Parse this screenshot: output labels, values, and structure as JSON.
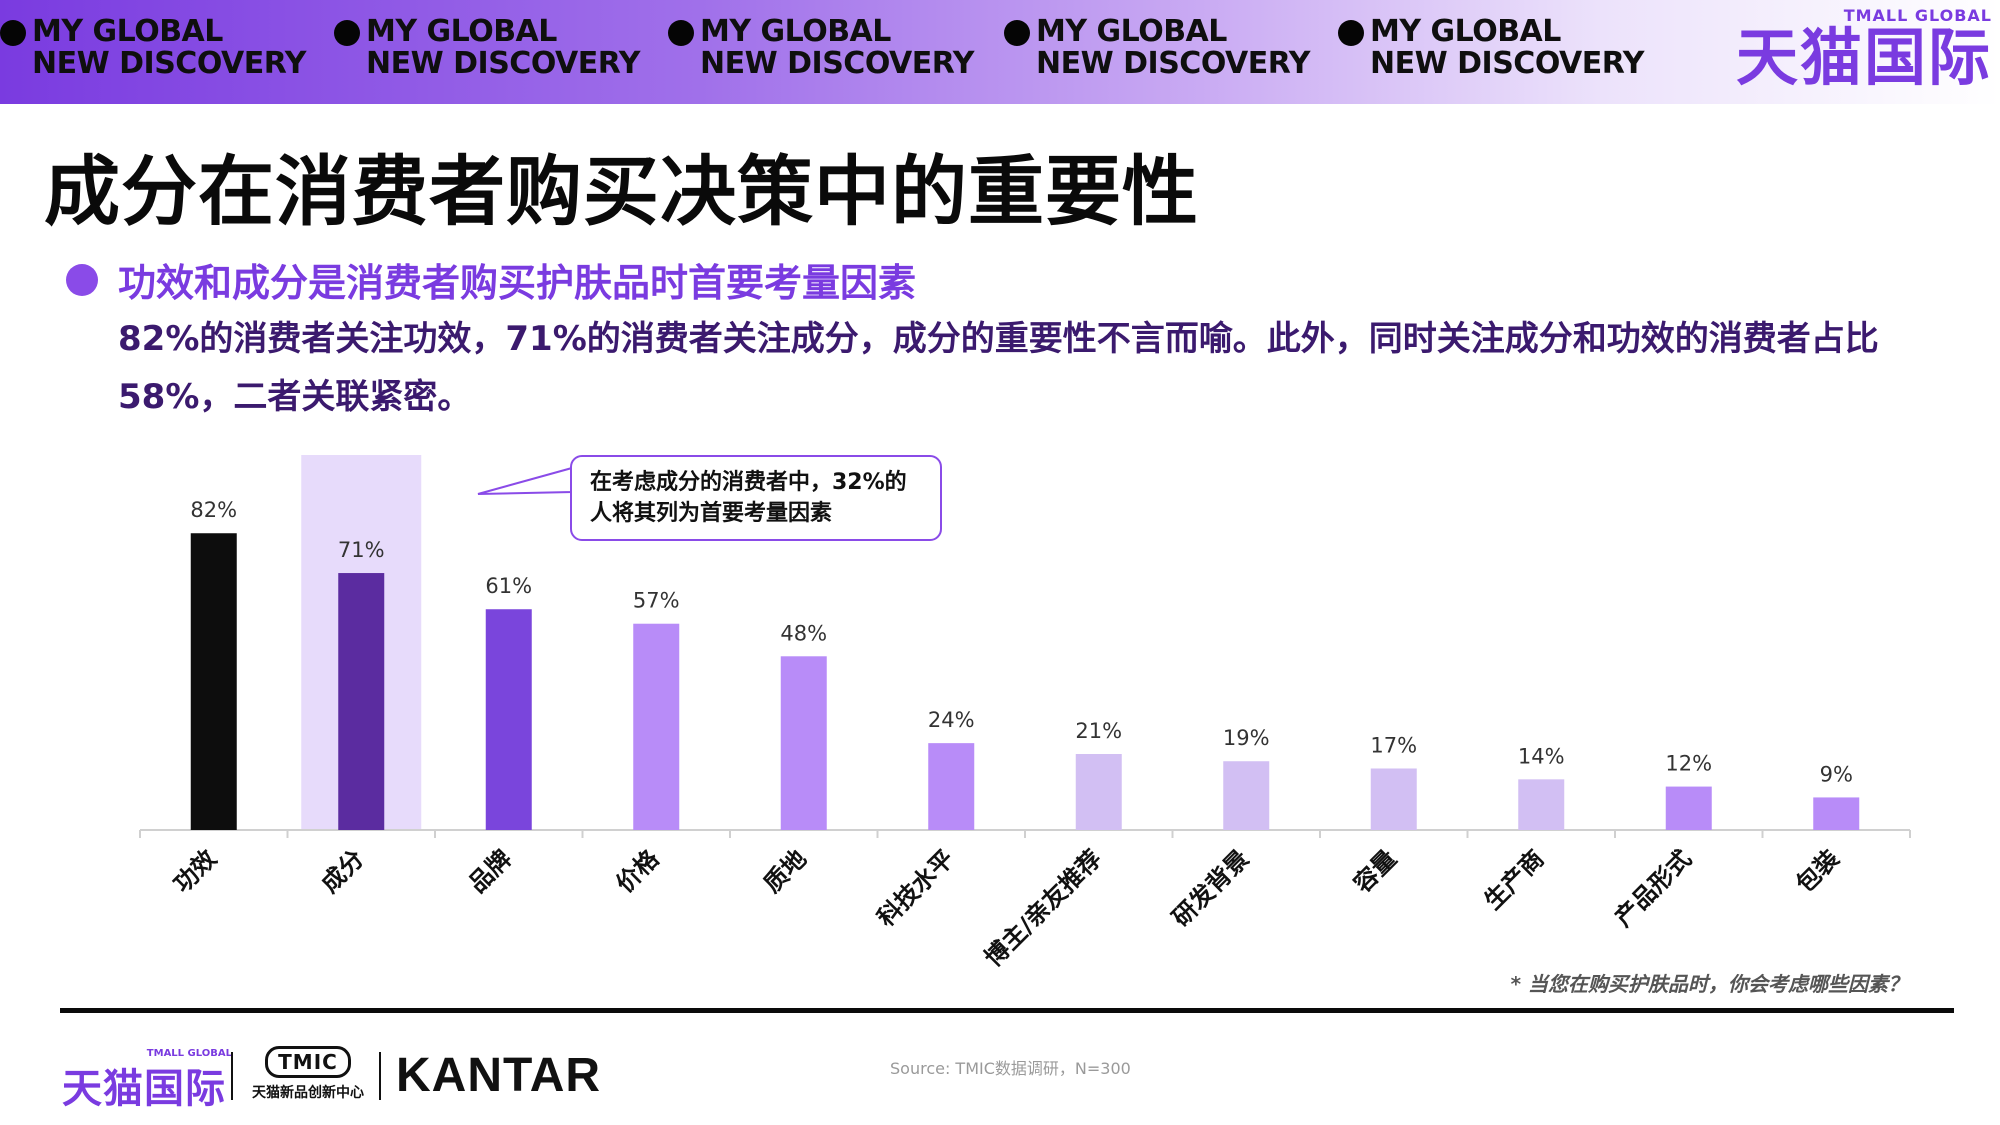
{
  "banner": {
    "tags": [
      {
        "line1": "MY GLOBAL",
        "line2": "NEW DISCOVERY"
      },
      {
        "line1": "MY GLOBAL",
        "line2": "NEW DISCOVERY"
      },
      {
        "line1": "MY GLOBAL",
        "line2": "NEW DISCOVERY"
      },
      {
        "line1": "MY GLOBAL",
        "line2": "NEW DISCOVERY"
      },
      {
        "line1": "MY GLOBAL",
        "line2": "NEW DISCOVERY"
      }
    ],
    "brand_en": "TMALL GLOBAL",
    "brand_cn": "天猫国际"
  },
  "title": "成分在消费者购买决策中的重要性",
  "subtitle": "功效和成分是消费者购买护肤品时首要考量因素",
  "body": "82%的消费者关注功效，71%的消费者关注成分，成分的重要性不言而喻。此外，同时关注成分和功效的消费者占比58%，二者关联紧密。",
  "callout": "在考虑成分的消费者中，32%的人将其列为首要考量因素",
  "question_note": "* 当您在购买护肤品时，你会考虑哪些因素？",
  "footer": {
    "brand_en": "TMALL GLOBAL",
    "brand_cn": "天猫国际",
    "tmic_logo": "TMIC",
    "tmic_sub": "天猫新品创新中心",
    "kantar": "KANTAR",
    "source": "Source: TMIC数据调研，N=300"
  },
  "chart_data": {
    "type": "bar",
    "categories": [
      "功效",
      "成分",
      "品牌",
      "价格",
      "质地",
      "科技水平",
      "博主/亲友推荐",
      "研发背景",
      "容量",
      "生产商",
      "产品形式",
      "包装"
    ],
    "values": [
      82,
      71,
      61,
      57,
      48,
      24,
      21,
      19,
      17,
      14,
      12,
      9
    ],
    "value_labels": [
      "82%",
      "71%",
      "61%",
      "57%",
      "48%",
      "24%",
      "21%",
      "19%",
      "17%",
      "14%",
      "12%",
      "9%"
    ],
    "colors": [
      "#0d0d0d",
      "#5b2ca0",
      "#7a45dc",
      "#b88cf8",
      "#b88cf8",
      "#b88cf8",
      "#d2bff3",
      "#d2bff3",
      "#d2bff3",
      "#d2bff3",
      "#b88cf8",
      "#b88cf8"
    ],
    "highlight_category": "成分",
    "highlight_color": "#e7dbfb",
    "ylim": [
      0,
      100
    ],
    "title": "",
    "xlabel": "",
    "ylabel": "",
    "grid": false,
    "legend": "none"
  }
}
